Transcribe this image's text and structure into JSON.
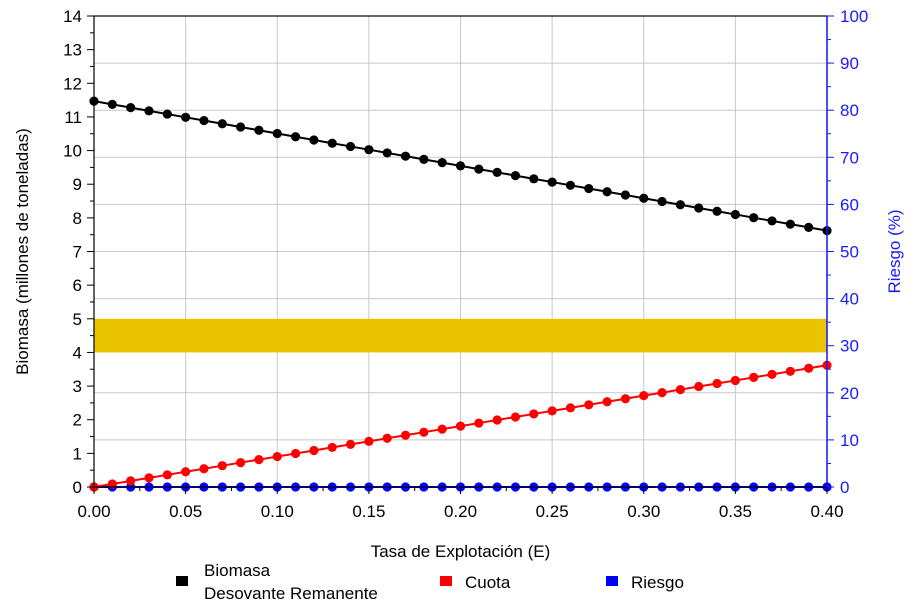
{
  "chart_data": {
    "type": "line",
    "xlabel": "Tasa de Explotación (E)",
    "ylabel_left": "Biomasa (millones de toneladas)",
    "ylabel_right": "Riesgo (%)",
    "xlim": [
      0,
      0.4
    ],
    "ylim_left": [
      0,
      14
    ],
    "ylim_right": [
      0,
      100
    ],
    "x_ticks": [
      "0.00",
      "0.05",
      "0.10",
      "0.15",
      "0.20",
      "0.25",
      "0.30",
      "0.35",
      "0.40"
    ],
    "y_left_ticks": [
      "0",
      "1",
      "2",
      "3",
      "4",
      "5",
      "6",
      "7",
      "8",
      "9",
      "10",
      "11",
      "12",
      "13",
      "14"
    ],
    "y_right_ticks": [
      "0",
      "10",
      "20",
      "30",
      "40",
      "50",
      "60",
      "70",
      "80",
      "90",
      "100"
    ],
    "grid": true,
    "band": {
      "y_from": 4,
      "y_to": 5,
      "color": "#ebc400"
    },
    "x_step": 0.01,
    "series": [
      {
        "name": "Biomasa\nDesovante Remanente",
        "axis": "left",
        "color": "#000000",
        "start": 11.47,
        "end": 7.62
      },
      {
        "name": "Cuota",
        "axis": "left",
        "color": "#ff0000",
        "start": 0.0,
        "end": 3.62
      },
      {
        "name": "Riesgo",
        "axis": "right",
        "color": "#0000ff",
        "start": 0.0,
        "end": 0.0
      }
    ],
    "legend": {
      "placement": "bottom",
      "items": [
        {
          "line1": "Biomasa",
          "line2": "Desovante Remanente",
          "color": "#000000"
        },
        {
          "line1": "Cuota",
          "line2": "",
          "color": "#ff0000"
        },
        {
          "line1": "Riesgo",
          "line2": "",
          "color": "#0000ff"
        }
      ]
    }
  }
}
